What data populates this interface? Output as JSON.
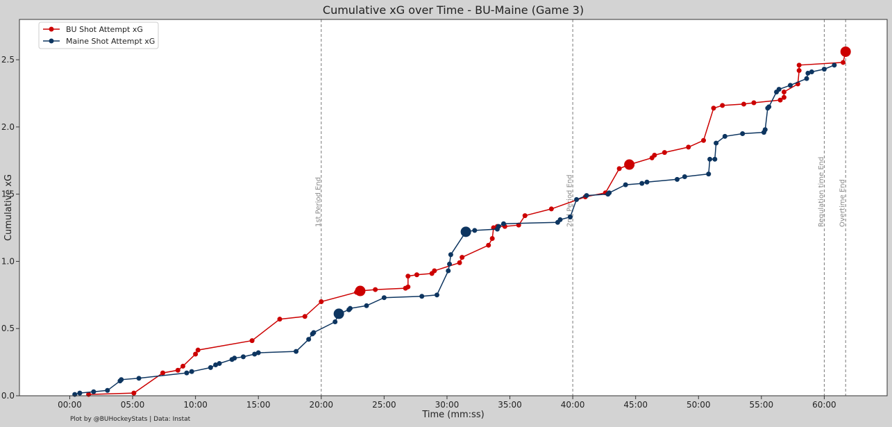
{
  "credit": "Plot by @BUHockeyStats | Data: Instat",
  "chart_data": {
    "type": "line",
    "title": "Cumulative xG over Time - BU-Maine (Game 3)",
    "xlabel": "Time (mm:ss)",
    "ylabel": "Cumulative xG",
    "xlim": [
      -4,
      65
    ],
    "ylim": [
      0,
      2.8
    ],
    "x_ticks": [
      0,
      5,
      10,
      15,
      20,
      25,
      30,
      35,
      40,
      45,
      50,
      55,
      60
    ],
    "x_tick_labels": [
      "00:00",
      "05:00",
      "10:00",
      "15:00",
      "20:00",
      "25:00",
      "30:00",
      "35:00",
      "40:00",
      "45:00",
      "50:00",
      "55:00",
      "60:00"
    ],
    "y_ticks": [
      0,
      0.5,
      1.0,
      1.5,
      2.0,
      2.5
    ],
    "y_tick_labels": [
      "0.0",
      "0.5",
      "1.0",
      "1.5",
      "2.0",
      "2.5"
    ],
    "grid": false,
    "legend_position": "top-left",
    "period_lines": [
      {
        "x": 20,
        "label": "1st Period End"
      },
      {
        "x": 40,
        "label": "2nd Period End"
      },
      {
        "x": 60,
        "label": "Regulation time End"
      },
      {
        "x": 61.7,
        "label": "Overtime End"
      }
    ],
    "series": [
      {
        "name": "BU Shot Attempt xG",
        "color": "#cc0000",
        "x": [
          1.5,
          5.1,
          7.4,
          8.6,
          9.0,
          10.0,
          10.2,
          14.5,
          16.7,
          18.7,
          20.0,
          22.8,
          23.1,
          24.3,
          26.7,
          26.9,
          26.9,
          27.6,
          28.8,
          29.0,
          31.0,
          31.2,
          33.3,
          33.6,
          33.7,
          34.0,
          34.6,
          35.7,
          36.2,
          38.3,
          41.0,
          42.6,
          43.7,
          44.5,
          46.3,
          46.5,
          47.3,
          49.2,
          50.4,
          51.2,
          51.9,
          53.6,
          54.4,
          56.5,
          56.8,
          56.8,
          57.9,
          58.0,
          58.0,
          61.5,
          61.7
        ],
        "y": [
          0.01,
          0.02,
          0.17,
          0.19,
          0.22,
          0.31,
          0.34,
          0.41,
          0.57,
          0.59,
          0.7,
          0.77,
          0.78,
          0.79,
          0.8,
          0.81,
          0.89,
          0.9,
          0.91,
          0.93,
          0.99,
          1.03,
          1.12,
          1.17,
          1.25,
          1.26,
          1.26,
          1.27,
          1.34,
          1.39,
          1.48,
          1.51,
          1.69,
          1.72,
          1.77,
          1.79,
          1.81,
          1.85,
          1.9,
          2.14,
          2.16,
          2.17,
          2.18,
          2.2,
          2.22,
          2.26,
          2.32,
          2.42,
          2.46,
          2.48,
          2.56
        ],
        "big_points": [
          12,
          33,
          50
        ]
      },
      {
        "name": "Maine Shot Attempt xG",
        "color": "#0d3560",
        "x": [
          0.4,
          0.8,
          1.9,
          3.0,
          4.0,
          4.1,
          5.5,
          9.3,
          9.7,
          11.2,
          11.6,
          11.9,
          12.9,
          13.1,
          13.8,
          14.7,
          15.0,
          18.0,
          19.0,
          19.3,
          19.4,
          21.1,
          21.4,
          22.2,
          22.3,
          23.6,
          25.0,
          28.0,
          29.2,
          30.1,
          30.2,
          30.3,
          31.5,
          32.2,
          34.0,
          34.1,
          34.5,
          38.8,
          39.0,
          39.8,
          40.3,
          41.1,
          42.8,
          42.9,
          44.2,
          45.5,
          45.9,
          48.3,
          48.9,
          50.8,
          50.9,
          51.3,
          51.4,
          52.1,
          53.5,
          55.2,
          55.3,
          55.5,
          55.6,
          56.2,
          56.4,
          57.3,
          58.6,
          58.7,
          59.0,
          60.0,
          60.8
        ],
        "y": [
          0.01,
          0.02,
          0.03,
          0.04,
          0.11,
          0.12,
          0.13,
          0.17,
          0.18,
          0.21,
          0.23,
          0.24,
          0.27,
          0.28,
          0.29,
          0.31,
          0.32,
          0.33,
          0.42,
          0.46,
          0.47,
          0.55,
          0.61,
          0.64,
          0.65,
          0.67,
          0.73,
          0.74,
          0.75,
          0.93,
          0.98,
          1.05,
          1.22,
          1.23,
          1.24,
          1.26,
          1.28,
          1.29,
          1.31,
          1.33,
          1.46,
          1.49,
          1.5,
          1.51,
          1.57,
          1.58,
          1.59,
          1.61,
          1.63,
          1.65,
          1.76,
          1.76,
          1.88,
          1.93,
          1.95,
          1.96,
          1.98,
          2.14,
          2.15,
          2.26,
          2.28,
          2.31,
          2.36,
          2.4,
          2.41,
          2.43,
          2.46
        ],
        "big_points": [
          22,
          32
        ]
      }
    ]
  }
}
